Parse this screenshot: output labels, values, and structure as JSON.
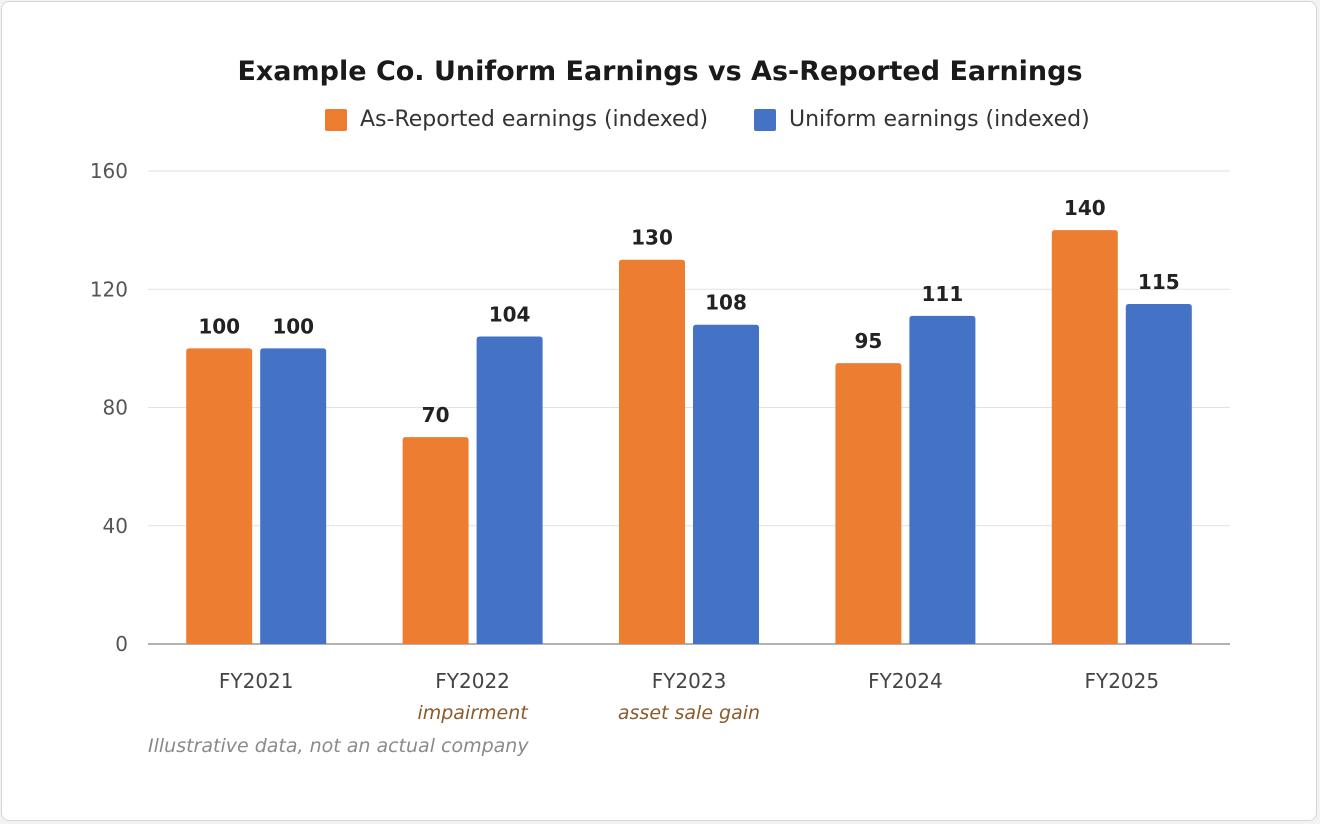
{
  "chart_data": {
    "type": "bar",
    "title": "Example Co. Uniform Earnings vs As-Reported Earnings",
    "categories": [
      "FY2021",
      "FY2022",
      "FY2023",
      "FY2024",
      "FY2025"
    ],
    "category_notes": [
      "",
      "impairment",
      "asset sale gain",
      "",
      ""
    ],
    "series": [
      {
        "name": "As-Reported earnings (indexed)",
        "color": "#ed7d31",
        "values": [
          100,
          70,
          130,
          95,
          140
        ]
      },
      {
        "name": "Uniform earnings (indexed)",
        "color": "#4472c4",
        "values": [
          100,
          104,
          108,
          111,
          115
        ]
      }
    ],
    "ylim": [
      0,
      160
    ],
    "yticks": [
      0,
      40,
      80,
      120,
      160
    ],
    "xlabel": "",
    "ylabel": "",
    "grid": true,
    "legend_position": "top",
    "data_labels": true,
    "note_color": "#8b5a2b"
  },
  "footnote": "Illustrative data, not an actual company"
}
